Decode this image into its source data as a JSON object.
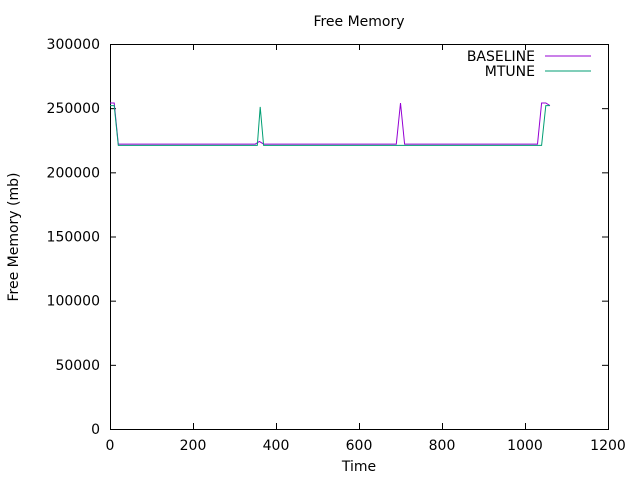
{
  "chart_data": {
    "type": "line",
    "title": "Free Memory",
    "xlabel": "Time",
    "ylabel": "Free Memory (mb)",
    "xlim": [
      0,
      1200
    ],
    "ylim": [
      0,
      300000
    ],
    "x_ticks": [
      0,
      200,
      400,
      600,
      800,
      1000,
      1200
    ],
    "y_ticks": [
      0,
      50000,
      100000,
      150000,
      200000,
      250000,
      300000
    ],
    "legend_position": "top-right",
    "grid": false,
    "series": [
      {
        "name": "BASELINE",
        "color": "#9400d3",
        "x": [
          0,
          10,
          20,
          350,
          360,
          370,
          690,
          700,
          710,
          1030,
          1040,
          1050,
          1060
        ],
        "y": [
          254000,
          254000,
          222000,
          222000,
          224000,
          222000,
          222000,
          254000,
          222000,
          222000,
          254000,
          254000,
          252000
        ]
      },
      {
        "name": "MTUNE",
        "color": "#009e73",
        "x": [
          0,
          10,
          20,
          355,
          362,
          370,
          690,
          700,
          710,
          1030,
          1040,
          1050,
          1060
        ],
        "y": [
          252000,
          252000,
          221000,
          221000,
          251000,
          221000,
          221000,
          221000,
          221000,
          221000,
          221000,
          252000,
          252000
        ]
      }
    ]
  }
}
